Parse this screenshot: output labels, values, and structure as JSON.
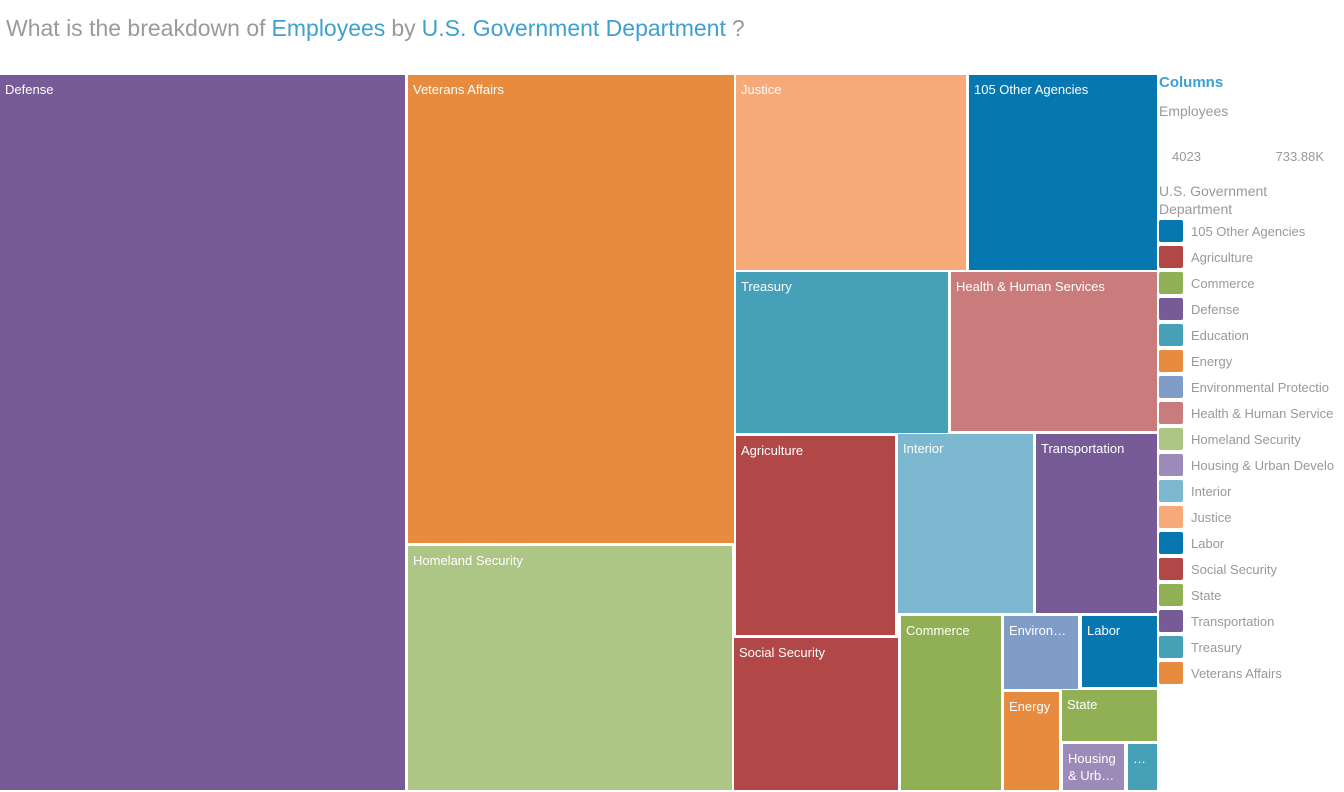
{
  "title": {
    "prefix": "What is the breakdown of",
    "measure": "Employees",
    "by": "by",
    "dimension": "U.S. Government Department",
    "suffix": "?"
  },
  "legend": {
    "heading": "Columns",
    "measure_label": "Employees",
    "min": "4023",
    "max": "733.88K",
    "dimension_label": "U.S. Government Department",
    "items": [
      {
        "label": "105 Other Agencies",
        "color": "#0677b1"
      },
      {
        "label": "Agriculture",
        "color": "#b24747"
      },
      {
        "label": "Commerce",
        "color": "#91af55"
      },
      {
        "label": "Defense",
        "color": "#765b96"
      },
      {
        "label": "Education",
        "color": "#46a0b8"
      },
      {
        "label": "Energy",
        "color": "#e78b3f"
      },
      {
        "label": "Environmental Protectio",
        "color": "#7f9dc7"
      },
      {
        "label": "Health & Human Service",
        "color": "#ca7b7b"
      },
      {
        "label": "Homeland Security",
        "color": "#adc585"
      },
      {
        "label": "Housing & Urban Develo",
        "color": "#9c8ab8"
      },
      {
        "label": "Interior",
        "color": "#7cb8cf"
      },
      {
        "label": "Justice",
        "color": "#f6a979"
      },
      {
        "label": "Labor",
        "color": "#0677b1"
      },
      {
        "label": "Social Security",
        "color": "#b24747"
      },
      {
        "label": "State",
        "color": "#91af55"
      },
      {
        "label": "Transportation",
        "color": "#765b96"
      },
      {
        "label": "Treasury",
        "color": "#46a0b8"
      },
      {
        "label": "Veterans Affairs",
        "color": "#e78b3f"
      }
    ]
  },
  "chart_data": {
    "type": "treemap",
    "measure": "Employees",
    "value_range": [
      "4023",
      "733.88K"
    ],
    "cells": [
      {
        "label": "Defense",
        "color": "#765b96"
      },
      {
        "label": "Veterans Affairs",
        "color": "#e78b3f"
      },
      {
        "label": "Homeland Security",
        "color": "#adc585"
      },
      {
        "label": "Justice",
        "color": "#f6a979"
      },
      {
        "label": "105 Other Agencies",
        "color": "#0677b1"
      },
      {
        "label": "Treasury",
        "color": "#46a0b8"
      },
      {
        "label": "Health & Human Services",
        "color": "#ca7b7b"
      },
      {
        "label": "Agriculture",
        "color": "#b24747"
      },
      {
        "label": "Interior",
        "color": "#7cb8cf"
      },
      {
        "label": "Transportation",
        "color": "#765b96"
      },
      {
        "label": "Social Security",
        "color": "#b24747"
      },
      {
        "label": "Commerce",
        "color": "#91af55"
      },
      {
        "label": "Environ…",
        "color": "#7f9dc7"
      },
      {
        "label": "Labor",
        "color": "#0677b1"
      },
      {
        "label": "Energy",
        "color": "#e78b3f"
      },
      {
        "label": "State",
        "color": "#91af55"
      },
      {
        "label": "Housing & Urb…",
        "color": "#9c8ab8"
      },
      {
        "label": "…",
        "color": "#46a0b8"
      }
    ]
  }
}
